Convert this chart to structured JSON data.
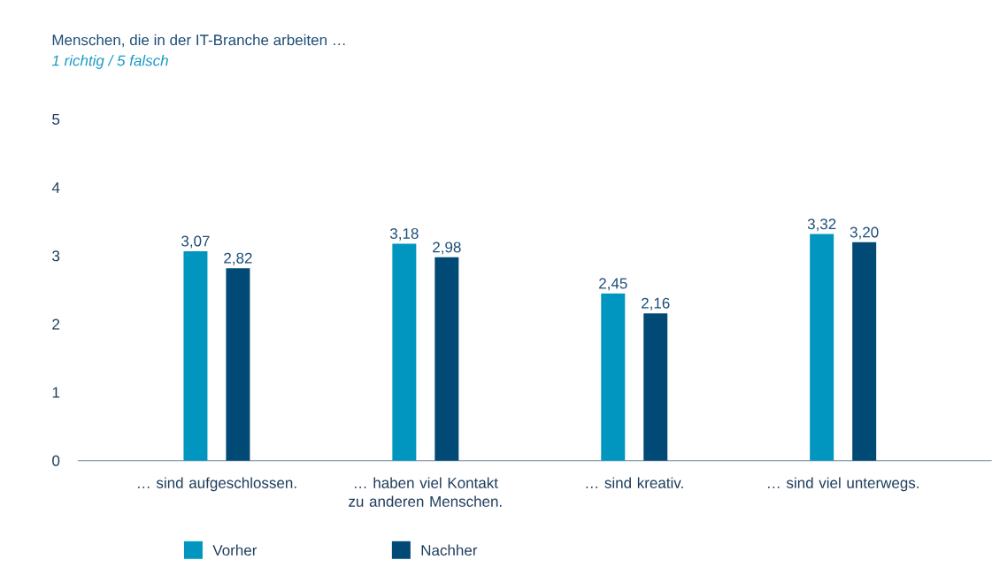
{
  "chart_data": {
    "type": "bar",
    "title": "Menschen, die in der IT-Branche arbeiten …",
    "subtitle": "1 richtig / 5 falsch",
    "categories": [
      "… sind aufgeschlossen.",
      "… haben viel Kontakt zu anderen Menschen.",
      "… sind kreativ.",
      "… sind viel unterwegs."
    ],
    "series": [
      {
        "name": "Vorher",
        "color": "#0096c0",
        "values": [
          3.07,
          3.18,
          2.45,
          3.32
        ],
        "value_labels": [
          "3,07",
          "3,18",
          "2,45",
          "3,32"
        ]
      },
      {
        "name": "Nachher",
        "color": "#004a75",
        "values": [
          2.82,
          2.98,
          2.16,
          3.2
        ],
        "value_labels": [
          "2,82",
          "2,98",
          "2,16",
          "3,20"
        ]
      }
    ],
    "ylim": [
      0,
      5
    ],
    "yticks": [
      0,
      1,
      2,
      3,
      4,
      5
    ],
    "grid": false,
    "legend": "bottom"
  }
}
